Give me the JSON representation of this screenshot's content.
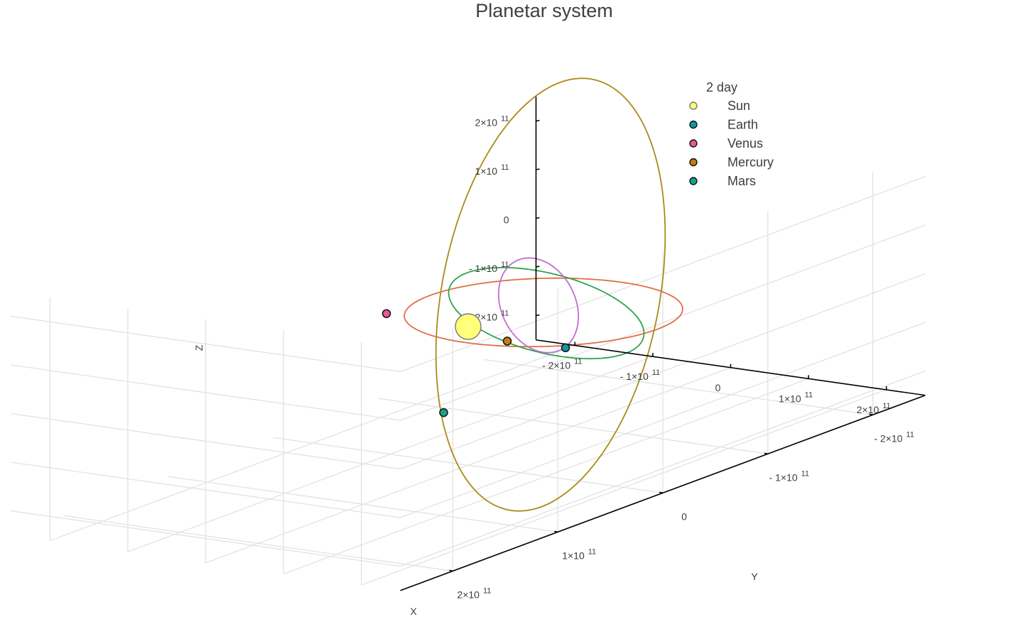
{
  "chart_data": {
    "type": "scatter",
    "title": "Planetar system",
    "xlabel": "X",
    "ylabel": "Y",
    "zlabel": "Z",
    "xlim": [
      -250000000000,
      250000000000
    ],
    "ylim": [
      -250000000000,
      250000000000
    ],
    "zlim": [
      -250000000000,
      250000000000
    ],
    "x_ticks": [
      {
        "value": -200000000000,
        "mantissa": "- 2×10",
        "exp": "11"
      },
      {
        "value": -100000000000,
        "mantissa": "- 1×10",
        "exp": "11"
      },
      {
        "value": 0,
        "mantissa": "0",
        "exp": ""
      },
      {
        "value": 100000000000,
        "mantissa": "1×10",
        "exp": "11"
      },
      {
        "value": 200000000000,
        "mantissa": "2×10",
        "exp": "11"
      }
    ],
    "y_ticks": [
      {
        "value": -200000000000,
        "mantissa": "- 2×10",
        "exp": "11"
      },
      {
        "value": -100000000000,
        "mantissa": "- 1×10",
        "exp": "11"
      },
      {
        "value": 0,
        "mantissa": "0",
        "exp": ""
      },
      {
        "value": 100000000000,
        "mantissa": "1×10",
        "exp": "11"
      },
      {
        "value": 200000000000,
        "mantissa": "2×10",
        "exp": "11"
      }
    ],
    "z_ticks": [
      {
        "value": -200000000000,
        "mantissa": "- 2×10",
        "exp": "11"
      },
      {
        "value": -100000000000,
        "mantissa": "- 1×10",
        "exp": "11"
      },
      {
        "value": 0,
        "mantissa": "0",
        "exp": ""
      },
      {
        "value": 100000000000,
        "mantissa": "1×10",
        "exp": "11"
      },
      {
        "value": 200000000000,
        "mantissa": "2×10",
        "exp": "11"
      }
    ],
    "grid": true,
    "legend": {
      "title": "2 day",
      "position": "top-right",
      "entries": [
        "Sun",
        "Earth",
        "Venus",
        "Mercury",
        "Mars"
      ]
    },
    "series": [
      {
        "name": "Sun",
        "color": "#ffff7a",
        "x": 0,
        "y": 0,
        "z": 35000000000
      },
      {
        "name": "Earth",
        "color": "#0f96a3",
        "x": 125000000000,
        "y": 0,
        "z": 20000000000
      },
      {
        "name": "Venus",
        "color": "#e8579a",
        "x": -78000000000,
        "y": 20000000000,
        "z": 60000000000
      },
      {
        "name": "Mercury",
        "color": "#c17d11",
        "x": 30000000000,
        "y": -15000000000,
        "z": 0
      },
      {
        "name": "Mars",
        "color": "#12a58d",
        "x": -45000000000,
        "y": -10000000000,
        "z": -160000000000
      }
    ],
    "orbits": [
      {
        "color": "#e07046"
      },
      {
        "color": "#2fa34a"
      },
      {
        "color": "#c06fcc"
      },
      {
        "color": "#a98b17"
      }
    ]
  }
}
